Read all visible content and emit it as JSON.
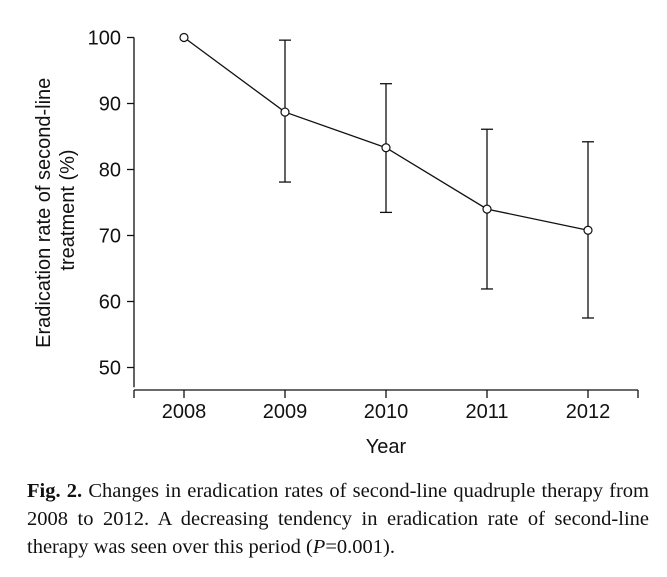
{
  "chart_data": {
    "type": "line",
    "xlabel": "Year",
    "ylabel_lines": [
      "Eradication rate of second-line",
      "treatment  (%)"
    ],
    "x": [
      "2008",
      "2009",
      "2010",
      "2011",
      "2012"
    ],
    "y": [
      100,
      88.7,
      83.3,
      74.0,
      70.8
    ],
    "error_upper": [
      100,
      99.6,
      93.0,
      86.1,
      84.2
    ],
    "error_lower": [
      100,
      78.1,
      73.5,
      61.9,
      57.5
    ],
    "ylim": [
      47,
      100
    ],
    "yticks": [
      50,
      60,
      70,
      80,
      90,
      100
    ],
    "grid": false,
    "legend": "none",
    "line_color": "#111111",
    "marker": "open-circle"
  },
  "caption": {
    "label": "Fig. 2.",
    "text_before": " Changes in eradication rates of second-line quadruple therapy from 2008 to 2012. A decreasing tendency in eradication rate of second-line therapy was seen over this period (",
    "italic": "P",
    "text_after": "=0.001)."
  }
}
